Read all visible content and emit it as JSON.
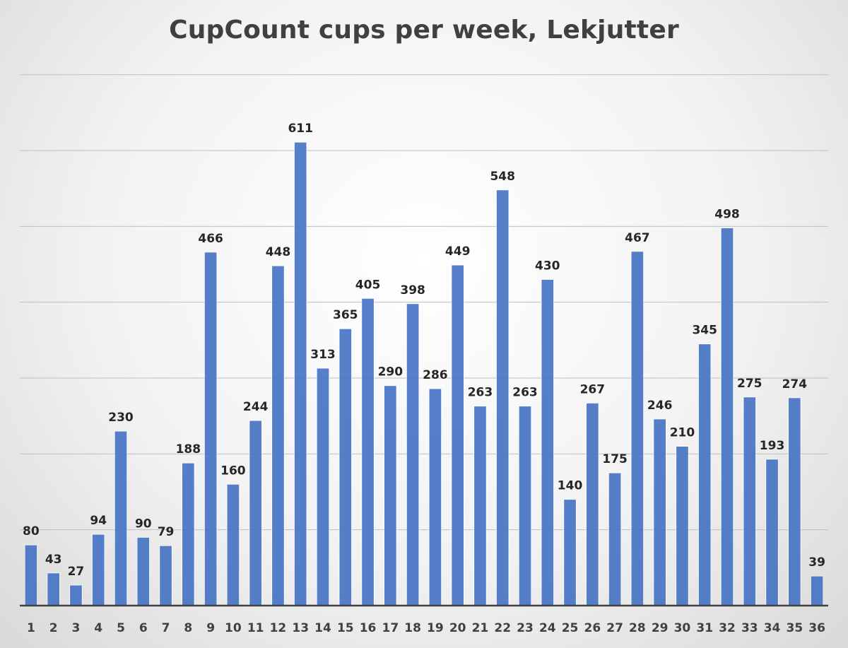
{
  "chart_data": {
    "type": "bar",
    "title": "CupCount cups per week, Lekjutter",
    "xlabel": "",
    "ylabel": "",
    "categories": [
      "1",
      "2",
      "3",
      "4",
      "5",
      "6",
      "7",
      "8",
      "9",
      "10",
      "11",
      "12",
      "13",
      "14",
      "15",
      "16",
      "17",
      "18",
      "19",
      "20",
      "21",
      "22",
      "23",
      "24",
      "25",
      "26",
      "27",
      "28",
      "29",
      "30",
      "31",
      "32",
      "33",
      "34",
      "35",
      "36"
    ],
    "series": [
      {
        "values": [
          80,
          43,
          27,
          94,
          230,
          90,
          79,
          188,
          466,
          160,
          244,
          448,
          611,
          313,
          365,
          405,
          290,
          398,
          286,
          449,
          263,
          548,
          263,
          430,
          140,
          267,
          175,
          467,
          246,
          210,
          345,
          498,
          275,
          193,
          274,
          39
        ],
        "color": "#4472c4"
      }
    ],
    "ylim": [
      0,
      700
    ],
    "y_gridlines": [
      100,
      200,
      300,
      400,
      500,
      600,
      700
    ],
    "y_tick_labels_shown": false,
    "data_labels": true,
    "grid": true,
    "legend": "none"
  }
}
